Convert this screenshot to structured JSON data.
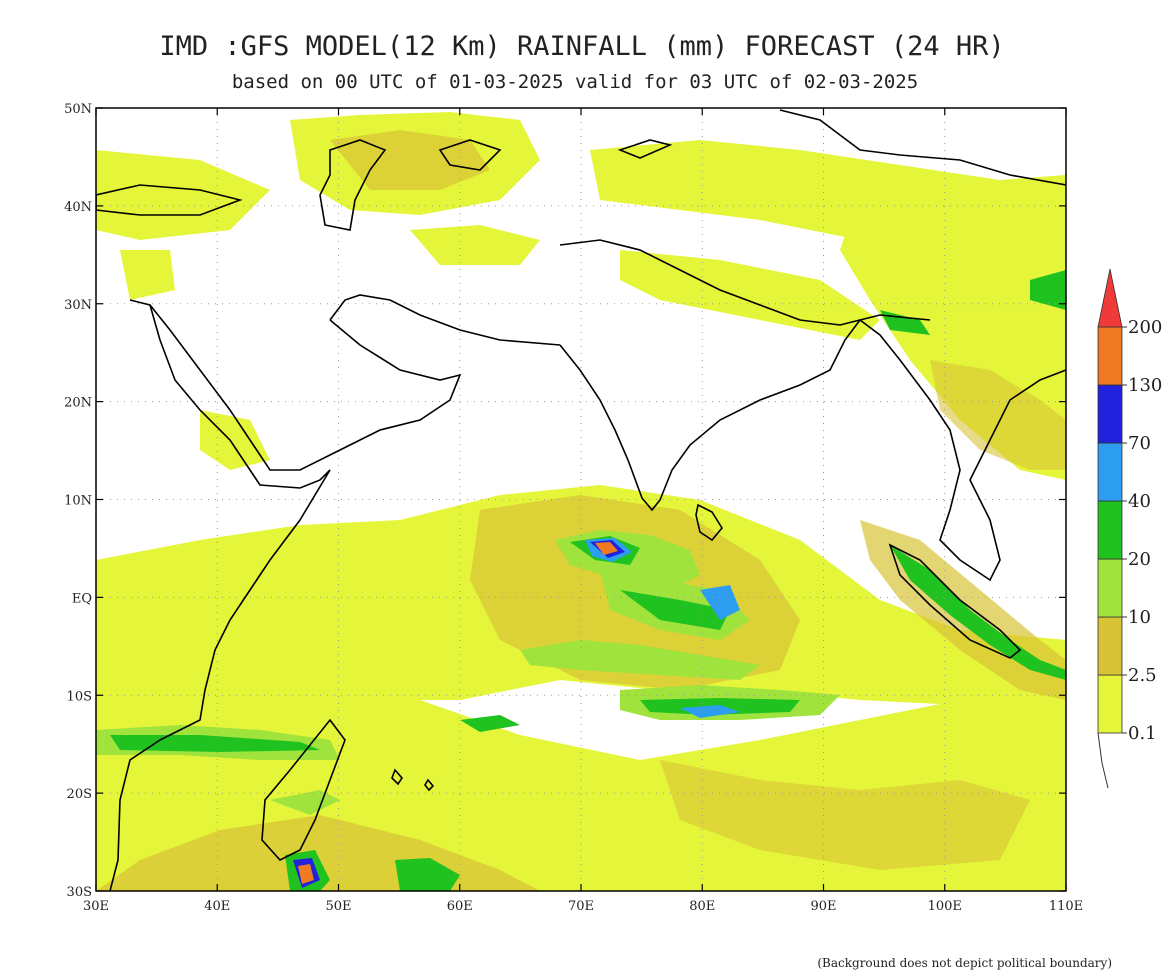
{
  "header": {
    "title": "IMD :GFS MODEL(12 Km) RAINFALL (mm) FORECAST (24 HR)",
    "subtitle": "based on 00 UTC of 01-03-2025 valid for 03 UTC of 02-03-2025"
  },
  "map": {
    "lon_range": [
      30,
      110
    ],
    "lat_range": [
      -30,
      50
    ],
    "lon_ticks": [
      {
        "value": 30,
        "label": "30E"
      },
      {
        "value": 40,
        "label": "40E"
      },
      {
        "value": 50,
        "label": "50E"
      },
      {
        "value": 60,
        "label": "60E"
      },
      {
        "value": 70,
        "label": "70E"
      },
      {
        "value": 80,
        "label": "80E"
      },
      {
        "value": 90,
        "label": "90E"
      },
      {
        "value": 100,
        "label": "100E"
      },
      {
        "value": 110,
        "label": "110E"
      }
    ],
    "lat_ticks": [
      {
        "value": 50,
        "label": "50N"
      },
      {
        "value": 40,
        "label": "40N"
      },
      {
        "value": 30,
        "label": "30N"
      },
      {
        "value": 20,
        "label": "20N"
      },
      {
        "value": 10,
        "label": "10N"
      },
      {
        "value": 0,
        "label": "EQ"
      },
      {
        "value": -10,
        "label": "10S"
      },
      {
        "value": -20,
        "label": "20S"
      },
      {
        "value": -30,
        "label": "30S"
      }
    ],
    "grid": "dotted"
  },
  "colorbar": {
    "levels": [
      "0.1",
      "2.5",
      "10",
      "20",
      "40",
      "70",
      "130",
      "200"
    ],
    "colors": [
      "#e4f53a",
      "#d8c337",
      "#9fe33c",
      "#1fc21f",
      "#2d9df0",
      "#2222dd",
      "#f07a22",
      "#f03a3a"
    ]
  },
  "footer": {
    "note": "(Background does not depict political boundary)"
  }
}
